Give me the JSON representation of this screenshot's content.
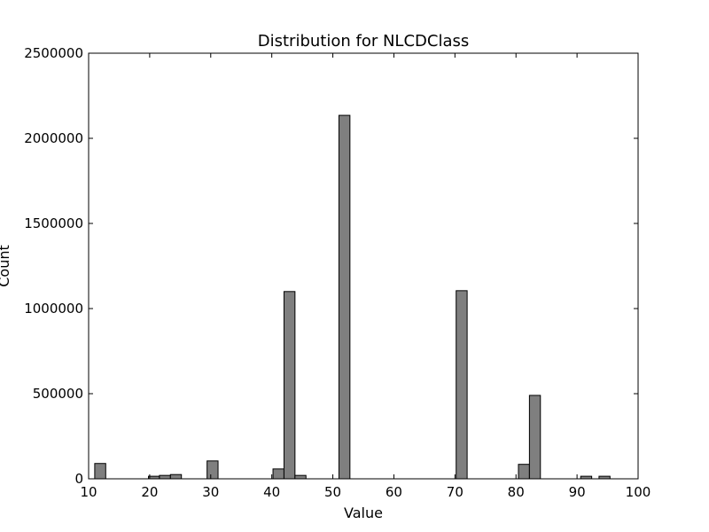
{
  "chart_data": {
    "type": "bar",
    "title": "Distribution for NLCDClass",
    "xlabel": "Value",
    "ylabel": "Count",
    "xlim": [
      10,
      100
    ],
    "ylim": [
      0,
      2500000
    ],
    "x_ticks": [
      "10",
      "20",
      "30",
      "40",
      "50",
      "60",
      "70",
      "80",
      "90",
      "100"
    ],
    "y_ticks": [
      "0",
      "500000",
      "1000000",
      "1500000",
      "2000000",
      "2500000"
    ],
    "bin_width": 1.8,
    "bins": [
      {
        "start": 11.0,
        "value": 90000
      },
      {
        "start": 19.8,
        "value": 15000
      },
      {
        "start": 21.6,
        "value": 20000
      },
      {
        "start": 23.4,
        "value": 25000
      },
      {
        "start": 29.4,
        "value": 105000
      },
      {
        "start": 40.2,
        "value": 58000
      },
      {
        "start": 42.0,
        "value": 1100000
      },
      {
        "start": 43.8,
        "value": 20000
      },
      {
        "start": 51.0,
        "value": 2135000
      },
      {
        "start": 70.2,
        "value": 1105000
      },
      {
        "start": 80.4,
        "value": 85000
      },
      {
        "start": 82.2,
        "value": 490000
      },
      {
        "start": 90.6,
        "value": 15000
      },
      {
        "start": 93.6,
        "value": 15000
      }
    ],
    "bar_color": "#7f7f7f",
    "edge_color": "#000000",
    "grid": false,
    "legend": "none"
  }
}
